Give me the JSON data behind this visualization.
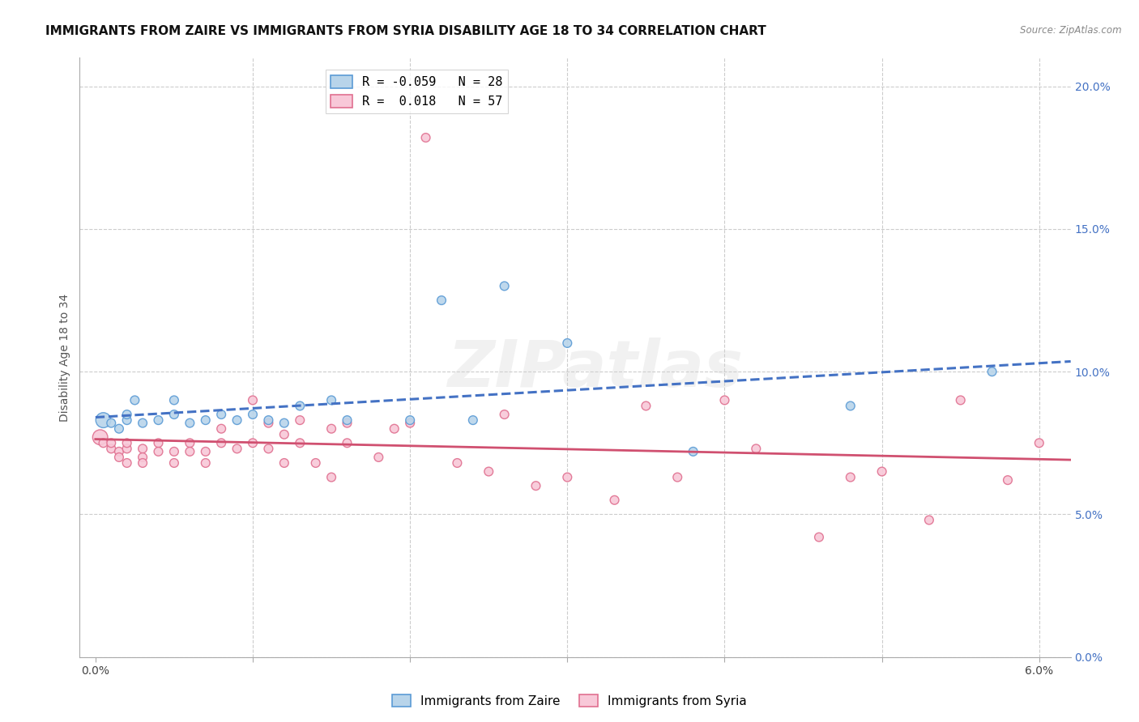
{
  "title": "IMMIGRANTS FROM ZAIRE VS IMMIGRANTS FROM SYRIA DISABILITY AGE 18 TO 34 CORRELATION CHART",
  "source": "Source: ZipAtlas.com",
  "ylabel_label": "Disability Age 18 to 34",
  "xlim": [
    -0.001,
    0.062
  ],
  "ylim": [
    0.0,
    0.21
  ],
  "xticks": [
    0.0,
    0.01,
    0.02,
    0.03,
    0.04,
    0.05,
    0.06
  ],
  "yticks": [
    0.0,
    0.05,
    0.1,
    0.15,
    0.2
  ],
  "xtick_labels_outer": [
    "0.0%",
    "6.0%"
  ],
  "xtick_outer_positions": [
    0.0,
    0.06
  ],
  "zaire_R": -0.059,
  "zaire_N": 28,
  "syria_R": 0.018,
  "syria_N": 57,
  "zaire_color": "#b8d4ea",
  "zaire_edge_color": "#5b9bd5",
  "zaire_line_color": "#4472c4",
  "syria_color": "#f8c8d8",
  "syria_edge_color": "#e07090",
  "syria_line_color": "#d05070",
  "zaire_x": [
    0.0005,
    0.001,
    0.0015,
    0.002,
    0.002,
    0.0025,
    0.003,
    0.004,
    0.005,
    0.005,
    0.006,
    0.007,
    0.008,
    0.009,
    0.01,
    0.011,
    0.012,
    0.013,
    0.015,
    0.016,
    0.02,
    0.022,
    0.024,
    0.026,
    0.03,
    0.038,
    0.048,
    0.057
  ],
  "zaire_y": [
    0.083,
    0.082,
    0.08,
    0.083,
    0.085,
    0.09,
    0.082,
    0.083,
    0.09,
    0.085,
    0.082,
    0.083,
    0.085,
    0.083,
    0.085,
    0.083,
    0.082,
    0.088,
    0.09,
    0.083,
    0.083,
    0.125,
    0.083,
    0.13,
    0.11,
    0.072,
    0.088,
    0.1
  ],
  "zaire_sizes": [
    180,
    60,
    60,
    60,
    60,
    60,
    60,
    60,
    60,
    60,
    60,
    60,
    60,
    60,
    60,
    60,
    60,
    60,
    60,
    60,
    60,
    60,
    60,
    60,
    60,
    60,
    60,
    60
  ],
  "syria_x": [
    0.0003,
    0.0005,
    0.001,
    0.001,
    0.0015,
    0.0015,
    0.002,
    0.002,
    0.002,
    0.003,
    0.003,
    0.003,
    0.004,
    0.004,
    0.005,
    0.005,
    0.006,
    0.006,
    0.007,
    0.007,
    0.008,
    0.008,
    0.009,
    0.01,
    0.01,
    0.011,
    0.011,
    0.012,
    0.012,
    0.013,
    0.013,
    0.014,
    0.015,
    0.015,
    0.016,
    0.016,
    0.018,
    0.019,
    0.02,
    0.021,
    0.023,
    0.025,
    0.026,
    0.028,
    0.03,
    0.033,
    0.035,
    0.037,
    0.04,
    0.042,
    0.046,
    0.048,
    0.05,
    0.053,
    0.055,
    0.058,
    0.06
  ],
  "syria_y": [
    0.077,
    0.075,
    0.073,
    0.075,
    0.072,
    0.07,
    0.073,
    0.075,
    0.068,
    0.073,
    0.07,
    0.068,
    0.075,
    0.072,
    0.072,
    0.068,
    0.075,
    0.072,
    0.068,
    0.072,
    0.075,
    0.08,
    0.073,
    0.075,
    0.09,
    0.082,
    0.073,
    0.078,
    0.068,
    0.083,
    0.075,
    0.068,
    0.08,
    0.063,
    0.082,
    0.075,
    0.07,
    0.08,
    0.082,
    0.182,
    0.068,
    0.065,
    0.085,
    0.06,
    0.063,
    0.055,
    0.088,
    0.063,
    0.09,
    0.073,
    0.042,
    0.063,
    0.065,
    0.048,
    0.09,
    0.062,
    0.075
  ],
  "syria_sizes": [
    180,
    60,
    60,
    60,
    60,
    60,
    60,
    60,
    60,
    60,
    60,
    60,
    60,
    60,
    60,
    60,
    60,
    60,
    60,
    60,
    60,
    60,
    60,
    60,
    60,
    60,
    60,
    60,
    60,
    60,
    60,
    60,
    60,
    60,
    60,
    60,
    60,
    60,
    60,
    60,
    60,
    60,
    60,
    60,
    60,
    60,
    60,
    60,
    60,
    60,
    60,
    60,
    60,
    60,
    60,
    60,
    60
  ],
  "watermark_text": "ZIPatlas",
  "background_color": "#ffffff",
  "grid_color": "#cccccc",
  "right_label_color": "#4472c4",
  "title_fontsize": 11,
  "axis_label_fontsize": 10,
  "tick_fontsize": 10,
  "legend_fontsize": 11,
  "marker_size": 65
}
